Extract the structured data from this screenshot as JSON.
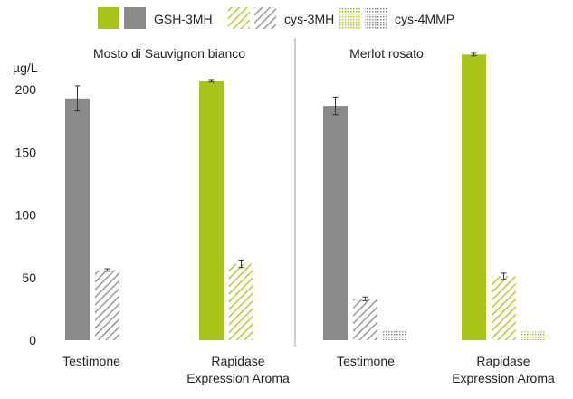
{
  "chart_data": {
    "type": "bar",
    "ylabel": "µg/L",
    "ylim": [
      0,
      210
    ],
    "yticks": [
      0,
      50,
      100,
      150,
      200
    ],
    "grid": false,
    "legend_position": "top-right",
    "legend": [
      {
        "name": "GSH-3MH",
        "patterns": [
          "solid-green",
          "solid-gray"
        ]
      },
      {
        "name": "cys-3MH",
        "patterns": [
          "hatch-green",
          "hatch-gray"
        ]
      },
      {
        "name": "cys-4MMP",
        "patterns": [
          "dots-green",
          "dots-gray"
        ]
      }
    ],
    "colors": {
      "green": "#a6c41a",
      "gray": "#8a8a8a",
      "axis": "#555555",
      "divider": "#9a9a9a"
    },
    "panels": [
      {
        "title": "Mosto di Sauvignon bianco",
        "groups": [
          {
            "category": "Testimone",
            "bars": [
              {
                "series": "GSH-3MH",
                "value": 193,
                "error": 10,
                "pattern": "solid-gray"
              },
              {
                "series": "cys-3MH",
                "value": 56,
                "error": 1,
                "pattern": "hatch-gray"
              }
            ]
          },
          {
            "category": "Rapidase Expression Aroma",
            "bars": [
              {
                "series": "GSH-3MH",
                "value": 207,
                "error": 1,
                "pattern": "solid-green"
              },
              {
                "series": "cys-3MH",
                "value": 61,
                "error": 3,
                "pattern": "hatch-green"
              }
            ]
          }
        ]
      },
      {
        "title": "Merlot rosato",
        "groups": [
          {
            "category": "Testimone",
            "bars": [
              {
                "series": "GSH-3MH",
                "value": 187,
                "error": 7,
                "pattern": "solid-gray"
              },
              {
                "series": "cys-3MH",
                "value": 33,
                "error": 1.5,
                "pattern": "hatch-gray"
              },
              {
                "series": "cys-4MMP",
                "value": 8,
                "error": 0,
                "pattern": "dots-gray"
              }
            ]
          },
          {
            "category": "Rapidase Expression Aroma",
            "bars": [
              {
                "series": "GSH-3MH",
                "value": 228,
                "error": 1,
                "pattern": "solid-green"
              },
              {
                "series": "cys-3MH",
                "value": 51,
                "error": 2.5,
                "pattern": "hatch-green"
              },
              {
                "series": "cys-4MMP",
                "value": 7,
                "error": 0,
                "pattern": "dots-green"
              }
            ]
          }
        ]
      }
    ]
  }
}
